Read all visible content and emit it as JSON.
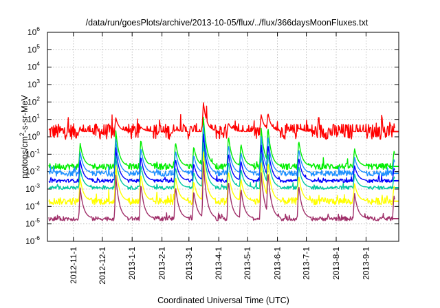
{
  "chart_data": {
    "type": "line",
    "title": "/data/run/goesPlots/archive/2013-10-05/flux/../flux/366daysMoonFluxes.txt",
    "xlabel": "Coordinated Universal Time (UTC)",
    "ylabel_parts": [
      "protons/cm",
      "2",
      "-s-sr-MeV"
    ],
    "x_start": "2012-10-05",
    "x_end": "2013-10-05",
    "x_ticks": [
      "2012-11-1",
      "2012-12-1",
      "2013-1-1",
      "2013-2-1",
      "2013-3-1",
      "2013-4-1",
      "2013-5-1",
      "2013-6-1",
      "2013-7-1",
      "2013-8-1",
      "2013-9-1"
    ],
    "y_scale": "log",
    "ylim": [
      1e-06,
      1000000.0
    ],
    "y_ticks": [
      {
        "base": "10",
        "exp": "-6"
      },
      {
        "base": "10",
        "exp": "-5"
      },
      {
        "base": "10",
        "exp": "-4"
      },
      {
        "base": "10",
        "exp": "-3"
      },
      {
        "base": "10",
        "exp": "-2"
      },
      {
        "base": "10",
        "exp": "-1"
      },
      {
        "base": "10",
        "exp": "0"
      },
      {
        "base": "10",
        "exp": "1"
      },
      {
        "base": "10",
        "exp": "2"
      },
      {
        "base": "10",
        "exp": "3"
      },
      {
        "base": "10",
        "exp": "4"
      },
      {
        "base": "10",
        "exp": "5"
      },
      {
        "base": "10",
        "exp": "6"
      }
    ],
    "grid": true,
    "legend": "none",
    "series": [
      {
        "color": "#ff0000",
        "baseline": 2.0,
        "noise_dex": 0.45
      },
      {
        "color": "#00ee00",
        "baseline": 0.02,
        "noise_dex": 0.18
      },
      {
        "color": "#1e90ff",
        "baseline": 0.008,
        "noise_dex": 0.16
      },
      {
        "color": "#0000ff",
        "baseline": 0.003,
        "noise_dex": 0.1
      },
      {
        "color": "#00c8a0",
        "baseline": 0.0012,
        "noise_dex": 0.1
      },
      {
        "color": "#ffff00",
        "baseline": 0.0002,
        "noise_dex": 0.2
      },
      {
        "color": "#a0306a",
        "baseline": 2e-05,
        "noise_dex": 0.12
      }
    ],
    "events": [
      {
        "date": "2012-11-08",
        "peak": 30
      },
      {
        "date": "2012-12-15",
        "peak": 200
      },
      {
        "date": "2013-01-10",
        "peak": 60
      },
      {
        "date": "2013-02-15",
        "peak": 40
      },
      {
        "date": "2013-03-06",
        "peak": 20
      },
      {
        "date": "2013-03-16",
        "peak": 1500
      },
      {
        "date": "2013-04-11",
        "peak": 100
      },
      {
        "date": "2013-04-24",
        "peak": 30
      },
      {
        "date": "2013-05-15",
        "peak": 300
      },
      {
        "date": "2013-05-22",
        "peak": 400
      },
      {
        "date": "2013-06-23",
        "peak": 50
      },
      {
        "date": "2013-08-20",
        "peak": 15
      },
      {
        "date": "2013-09-30",
        "peak": 10
      }
    ]
  }
}
